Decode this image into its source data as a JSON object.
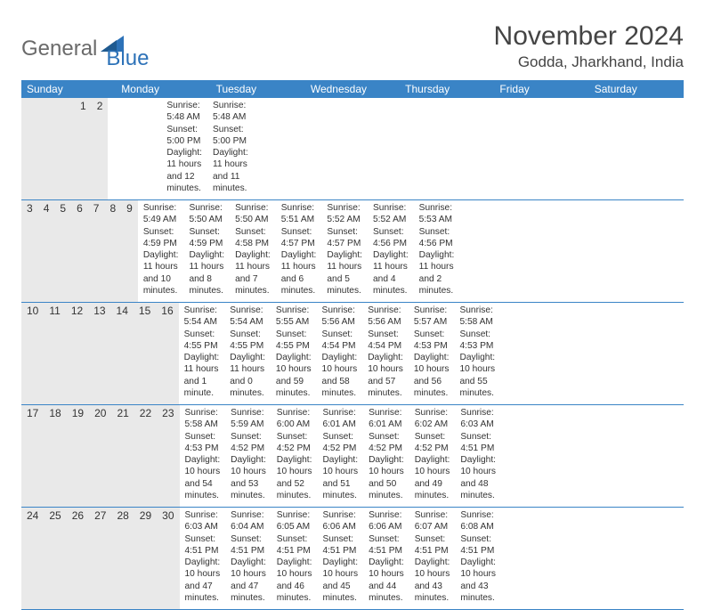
{
  "colors": {
    "header_bg": "#3a84c6",
    "row_divider": "#3a84c6",
    "datenum_bg": "#e9e9e9",
    "background": "#ffffff",
    "text": "#333333",
    "logo_gray": "#6a6a6a",
    "logo_blue": "#2d72b8"
  },
  "typography": {
    "title_fontsize": 30,
    "location_fontsize": 17,
    "weekday_fontsize": 12,
    "daynum_fontsize": 12,
    "body_fontsize": 10.2
  },
  "logo": {
    "word1": "General",
    "word2": "Blue"
  },
  "title": "November 2024",
  "location": "Godda, Jharkhand, India",
  "weekdays": [
    "Sunday",
    "Monday",
    "Tuesday",
    "Wednesday",
    "Thursday",
    "Friday",
    "Saturday"
  ],
  "weeks": [
    {
      "nums": [
        "",
        "",
        "",
        "",
        "",
        "1",
        "2"
      ],
      "body": [
        null,
        null,
        null,
        null,
        null,
        {
          "sunrise": "Sunrise: 5:48 AM",
          "sunset": "Sunset: 5:00 PM",
          "daylight": "Daylight: 11 hours and 12 minutes."
        },
        {
          "sunrise": "Sunrise: 5:48 AM",
          "sunset": "Sunset: 5:00 PM",
          "daylight": "Daylight: 11 hours and 11 minutes."
        }
      ]
    },
    {
      "nums": [
        "3",
        "4",
        "5",
        "6",
        "7",
        "8",
        "9"
      ],
      "body": [
        {
          "sunrise": "Sunrise: 5:49 AM",
          "sunset": "Sunset: 4:59 PM",
          "daylight": "Daylight: 11 hours and 10 minutes."
        },
        {
          "sunrise": "Sunrise: 5:50 AM",
          "sunset": "Sunset: 4:59 PM",
          "daylight": "Daylight: 11 hours and 8 minutes."
        },
        {
          "sunrise": "Sunrise: 5:50 AM",
          "sunset": "Sunset: 4:58 PM",
          "daylight": "Daylight: 11 hours and 7 minutes."
        },
        {
          "sunrise": "Sunrise: 5:51 AM",
          "sunset": "Sunset: 4:57 PM",
          "daylight": "Daylight: 11 hours and 6 minutes."
        },
        {
          "sunrise": "Sunrise: 5:52 AM",
          "sunset": "Sunset: 4:57 PM",
          "daylight": "Daylight: 11 hours and 5 minutes."
        },
        {
          "sunrise": "Sunrise: 5:52 AM",
          "sunset": "Sunset: 4:56 PM",
          "daylight": "Daylight: 11 hours and 4 minutes."
        },
        {
          "sunrise": "Sunrise: 5:53 AM",
          "sunset": "Sunset: 4:56 PM",
          "daylight": "Daylight: 11 hours and 2 minutes."
        }
      ]
    },
    {
      "nums": [
        "10",
        "11",
        "12",
        "13",
        "14",
        "15",
        "16"
      ],
      "body": [
        {
          "sunrise": "Sunrise: 5:54 AM",
          "sunset": "Sunset: 4:55 PM",
          "daylight": "Daylight: 11 hours and 1 minute."
        },
        {
          "sunrise": "Sunrise: 5:54 AM",
          "sunset": "Sunset: 4:55 PM",
          "daylight": "Daylight: 11 hours and 0 minutes."
        },
        {
          "sunrise": "Sunrise: 5:55 AM",
          "sunset": "Sunset: 4:55 PM",
          "daylight": "Daylight: 10 hours and 59 minutes."
        },
        {
          "sunrise": "Sunrise: 5:56 AM",
          "sunset": "Sunset: 4:54 PM",
          "daylight": "Daylight: 10 hours and 58 minutes."
        },
        {
          "sunrise": "Sunrise: 5:56 AM",
          "sunset": "Sunset: 4:54 PM",
          "daylight": "Daylight: 10 hours and 57 minutes."
        },
        {
          "sunrise": "Sunrise: 5:57 AM",
          "sunset": "Sunset: 4:53 PM",
          "daylight": "Daylight: 10 hours and 56 minutes."
        },
        {
          "sunrise": "Sunrise: 5:58 AM",
          "sunset": "Sunset: 4:53 PM",
          "daylight": "Daylight: 10 hours and 55 minutes."
        }
      ]
    },
    {
      "nums": [
        "17",
        "18",
        "19",
        "20",
        "21",
        "22",
        "23"
      ],
      "body": [
        {
          "sunrise": "Sunrise: 5:58 AM",
          "sunset": "Sunset: 4:53 PM",
          "daylight": "Daylight: 10 hours and 54 minutes."
        },
        {
          "sunrise": "Sunrise: 5:59 AM",
          "sunset": "Sunset: 4:52 PM",
          "daylight": "Daylight: 10 hours and 53 minutes."
        },
        {
          "sunrise": "Sunrise: 6:00 AM",
          "sunset": "Sunset: 4:52 PM",
          "daylight": "Daylight: 10 hours and 52 minutes."
        },
        {
          "sunrise": "Sunrise: 6:01 AM",
          "sunset": "Sunset: 4:52 PM",
          "daylight": "Daylight: 10 hours and 51 minutes."
        },
        {
          "sunrise": "Sunrise: 6:01 AM",
          "sunset": "Sunset: 4:52 PM",
          "daylight": "Daylight: 10 hours and 50 minutes."
        },
        {
          "sunrise": "Sunrise: 6:02 AM",
          "sunset": "Sunset: 4:52 PM",
          "daylight": "Daylight: 10 hours and 49 minutes."
        },
        {
          "sunrise": "Sunrise: 6:03 AM",
          "sunset": "Sunset: 4:51 PM",
          "daylight": "Daylight: 10 hours and 48 minutes."
        }
      ]
    },
    {
      "nums": [
        "24",
        "25",
        "26",
        "27",
        "28",
        "29",
        "30"
      ],
      "body": [
        {
          "sunrise": "Sunrise: 6:03 AM",
          "sunset": "Sunset: 4:51 PM",
          "daylight": "Daylight: 10 hours and 47 minutes."
        },
        {
          "sunrise": "Sunrise: 6:04 AM",
          "sunset": "Sunset: 4:51 PM",
          "daylight": "Daylight: 10 hours and 47 minutes."
        },
        {
          "sunrise": "Sunrise: 6:05 AM",
          "sunset": "Sunset: 4:51 PM",
          "daylight": "Daylight: 10 hours and 46 minutes."
        },
        {
          "sunrise": "Sunrise: 6:06 AM",
          "sunset": "Sunset: 4:51 PM",
          "daylight": "Daylight: 10 hours and 45 minutes."
        },
        {
          "sunrise": "Sunrise: 6:06 AM",
          "sunset": "Sunset: 4:51 PM",
          "daylight": "Daylight: 10 hours and 44 minutes."
        },
        {
          "sunrise": "Sunrise: 6:07 AM",
          "sunset": "Sunset: 4:51 PM",
          "daylight": "Daylight: 10 hours and 43 minutes."
        },
        {
          "sunrise": "Sunrise: 6:08 AM",
          "sunset": "Sunset: 4:51 PM",
          "daylight": "Daylight: 10 hours and 43 minutes."
        }
      ]
    }
  ]
}
